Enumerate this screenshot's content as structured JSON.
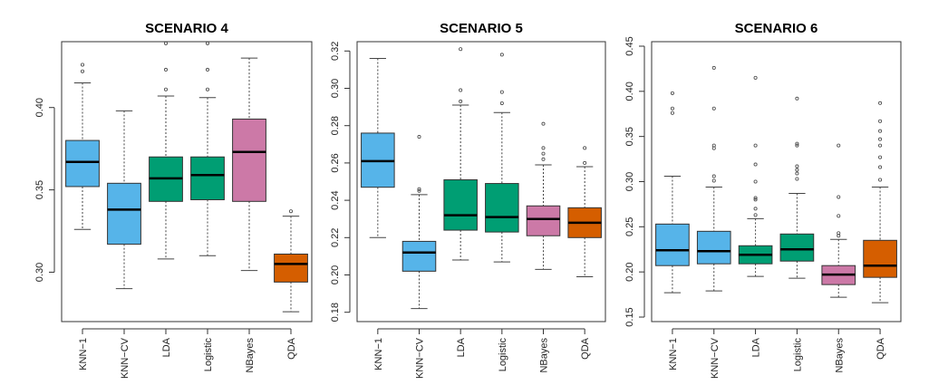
{
  "colors": {
    "blue": "#56b4e9",
    "green": "#009e73",
    "pink": "#cc79a7",
    "orange": "#d55e00"
  },
  "chart_data": [
    {
      "type": "boxplot",
      "title": "SCENARIO 4",
      "categories": [
        "KNN−1",
        "KNN−CV",
        "LDA",
        "Logistic",
        "NBayes",
        "QDA"
      ],
      "colors": [
        "blue",
        "blue",
        "green",
        "green",
        "pink",
        "orange"
      ],
      "ylim": [
        0.27,
        0.44
      ],
      "yticks": [
        0.3,
        0.35,
        0.4
      ],
      "ytick_labels": [
        "0.30",
        "0.35",
        "0.40"
      ],
      "boxes": [
        {
          "lower_whisker": 0.326,
          "q1": 0.352,
          "median": 0.367,
          "q3": 0.38,
          "upper_whisker": 0.415,
          "outliers": [
            0.422,
            0.426
          ]
        },
        {
          "lower_whisker": 0.29,
          "q1": 0.317,
          "median": 0.338,
          "q3": 0.354,
          "upper_whisker": 0.398,
          "outliers": []
        },
        {
          "lower_whisker": 0.308,
          "q1": 0.343,
          "median": 0.357,
          "q3": 0.37,
          "upper_whisker": 0.407,
          "outliers": [
            0.411,
            0.423,
            0.439
          ]
        },
        {
          "lower_whisker": 0.31,
          "q1": 0.344,
          "median": 0.359,
          "q3": 0.37,
          "upper_whisker": 0.406,
          "outliers": [
            0.411,
            0.423,
            0.439
          ]
        },
        {
          "lower_whisker": 0.301,
          "q1": 0.343,
          "median": 0.373,
          "q3": 0.393,
          "upper_whisker": 0.43,
          "outliers": []
        },
        {
          "lower_whisker": 0.276,
          "q1": 0.294,
          "median": 0.305,
          "q3": 0.311,
          "upper_whisker": 0.334,
          "outliers": [
            0.337
          ]
        }
      ]
    },
    {
      "type": "boxplot",
      "title": "SCENARIO 5",
      "categories": [
        "KNN−1",
        "KNN−CV",
        "LDA",
        "Logistic",
        "NBayes",
        "QDA"
      ],
      "colors": [
        "blue",
        "blue",
        "green",
        "green",
        "pink",
        "orange"
      ],
      "ylim": [
        0.175,
        0.325
      ],
      "yticks": [
        0.18,
        0.2,
        0.22,
        0.24,
        0.26,
        0.28,
        0.3,
        0.32
      ],
      "ytick_labels": [
        "0.18",
        "0.20",
        "0.22",
        "0.24",
        "0.26",
        "0.28",
        "0.30",
        "0.32"
      ],
      "boxes": [
        {
          "lower_whisker": 0.22,
          "q1": 0.247,
          "median": 0.261,
          "q3": 0.276,
          "upper_whisker": 0.316,
          "outliers": []
        },
        {
          "lower_whisker": 0.182,
          "q1": 0.202,
          "median": 0.212,
          "q3": 0.218,
          "upper_whisker": 0.243,
          "outliers": [
            0.245,
            0.246,
            0.274
          ]
        },
        {
          "lower_whisker": 0.208,
          "q1": 0.224,
          "median": 0.232,
          "q3": 0.251,
          "upper_whisker": 0.291,
          "outliers": [
            0.293,
            0.299,
            0.321
          ]
        },
        {
          "lower_whisker": 0.207,
          "q1": 0.223,
          "median": 0.231,
          "q3": 0.249,
          "upper_whisker": 0.287,
          "outliers": [
            0.292,
            0.298,
            0.318
          ]
        },
        {
          "lower_whisker": 0.203,
          "q1": 0.221,
          "median": 0.23,
          "q3": 0.237,
          "upper_whisker": 0.259,
          "outliers": [
            0.262,
            0.265,
            0.268,
            0.281
          ]
        },
        {
          "lower_whisker": 0.199,
          "q1": 0.22,
          "median": 0.228,
          "q3": 0.236,
          "upper_whisker": 0.258,
          "outliers": [
            0.26,
            0.268
          ]
        }
      ]
    },
    {
      "type": "boxplot",
      "title": "SCENARIO 6",
      "categories": [
        "KNN−1",
        "KNN−CV",
        "LDA",
        "Logistic",
        "NBayes",
        "QDA"
      ],
      "colors": [
        "blue",
        "blue",
        "green",
        "green",
        "pink",
        "orange"
      ],
      "ylim": [
        0.145,
        0.455
      ],
      "yticks": [
        0.15,
        0.2,
        0.25,
        0.3,
        0.35,
        0.4,
        0.45
      ],
      "ytick_labels": [
        "0.15",
        "0.20",
        "0.25",
        "0.30",
        "0.35",
        "0.40",
        "0.45"
      ],
      "boxes": [
        {
          "lower_whisker": 0.177,
          "q1": 0.207,
          "median": 0.224,
          "q3": 0.253,
          "upper_whisker": 0.306,
          "outliers": [
            0.376,
            0.381,
            0.398
          ]
        },
        {
          "lower_whisker": 0.179,
          "q1": 0.209,
          "median": 0.223,
          "q3": 0.245,
          "upper_whisker": 0.294,
          "outliers": [
            0.301,
            0.306,
            0.337,
            0.34,
            0.381,
            0.426
          ]
        },
        {
          "lower_whisker": 0.195,
          "q1": 0.209,
          "median": 0.219,
          "q3": 0.229,
          "upper_whisker": 0.259,
          "outliers": [
            0.263,
            0.27,
            0.28,
            0.282,
            0.3,
            0.319,
            0.34,
            0.415
          ]
        },
        {
          "lower_whisker": 0.193,
          "q1": 0.212,
          "median": 0.225,
          "q3": 0.242,
          "upper_whisker": 0.287,
          "outliers": [
            0.303,
            0.309,
            0.313,
            0.317,
            0.34,
            0.342,
            0.392
          ]
        },
        {
          "lower_whisker": 0.172,
          "q1": 0.186,
          "median": 0.197,
          "q3": 0.207,
          "upper_whisker": 0.236,
          "outliers": [
            0.24,
            0.243,
            0.262,
            0.283,
            0.34
          ]
        },
        {
          "lower_whisker": 0.166,
          "q1": 0.194,
          "median": 0.207,
          "q3": 0.235,
          "upper_whisker": 0.294,
          "outliers": [
            0.302,
            0.316,
            0.327,
            0.34,
            0.347,
            0.356,
            0.367,
            0.387
          ]
        }
      ]
    }
  ]
}
